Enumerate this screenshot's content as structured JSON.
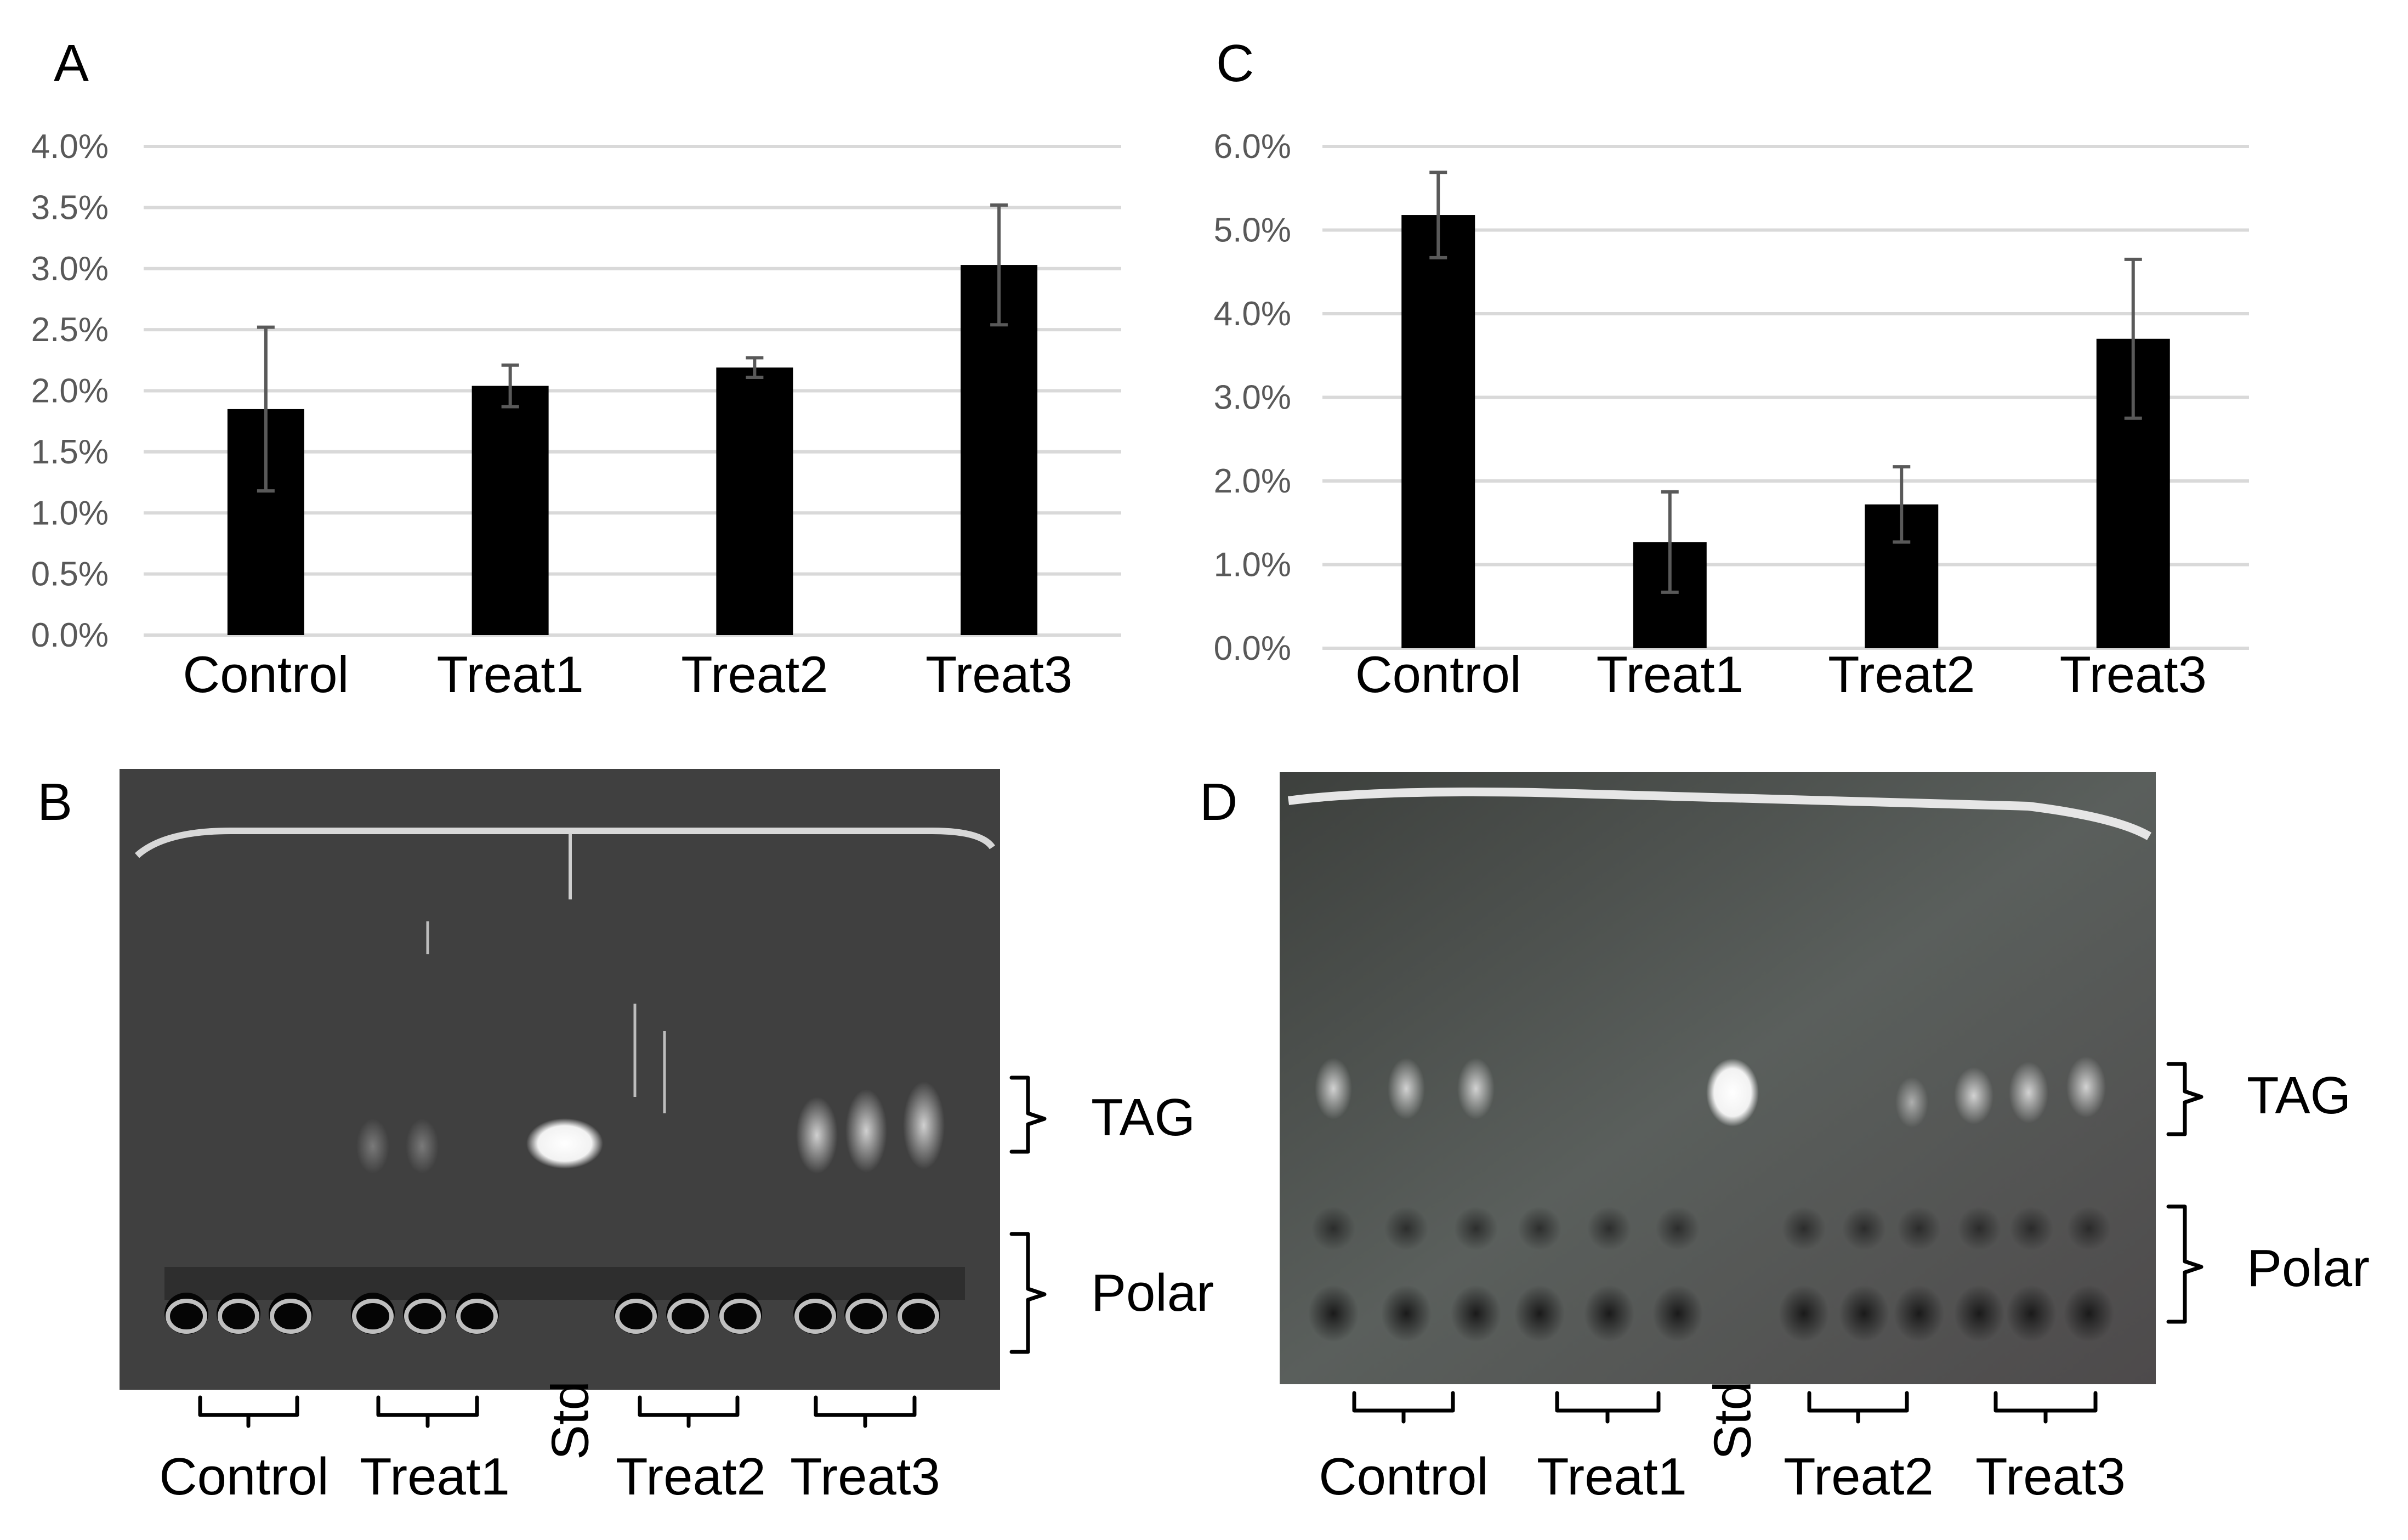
{
  "chart_data": [
    {
      "panel": "A",
      "type": "bar",
      "categories": [
        "Control",
        "Treat1",
        "Treat2",
        "Treat3"
      ],
      "values": [
        1.85,
        2.04,
        2.19,
        3.03
      ],
      "errors": [
        0.67,
        0.17,
        0.08,
        0.49
      ],
      "ylim": [
        0,
        4
      ],
      "yticks": [
        "0.0%",
        "0.5%",
        "1.0%",
        "1.5%",
        "2.0%",
        "2.5%",
        "3.0%",
        "3.5%",
        "4.0%"
      ],
      "grid": true
    },
    {
      "panel": "C",
      "type": "bar",
      "categories": [
        "Control",
        "Treat1",
        "Treat2",
        "Treat3"
      ],
      "values": [
        5.18,
        1.27,
        1.72,
        3.7
      ],
      "errors": [
        0.51,
        0.6,
        0.45,
        0.95
      ],
      "ylim": [
        0,
        6
      ],
      "yticks": [
        "0.0%",
        "1.0%",
        "2.0%",
        "3.0%",
        "4.0%",
        "5.0%",
        "6.0%"
      ],
      "grid": true
    }
  ],
  "gels": [
    {
      "panel": "B",
      "band_labels": [
        "TAG",
        "Polar"
      ],
      "lane_labels": [
        "Control",
        "Treat1",
        "Std",
        "Treat2",
        "Treat3"
      ]
    },
    {
      "panel": "D",
      "band_labels": [
        "TAG",
        "Polar"
      ],
      "lane_labels": [
        "Control",
        "Treat1",
        "Std",
        "Treat2",
        "Treat3"
      ]
    }
  ]
}
